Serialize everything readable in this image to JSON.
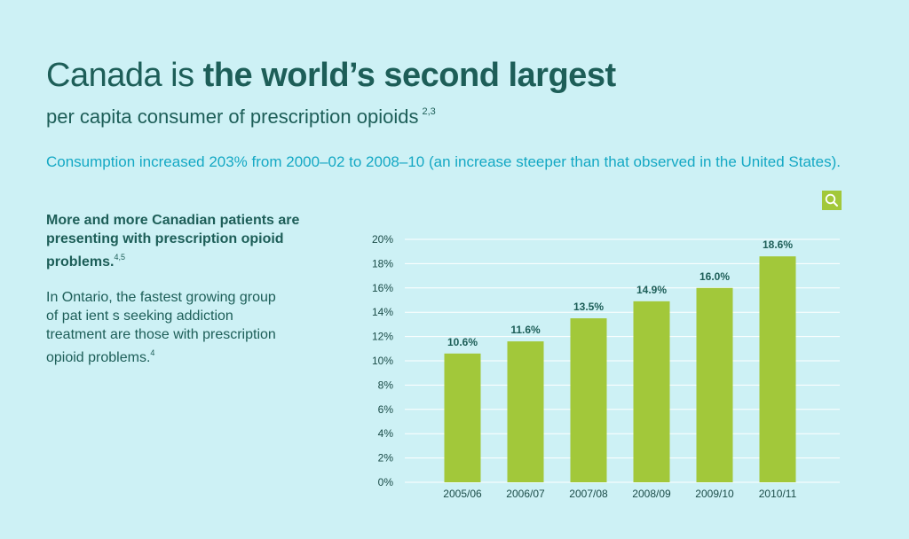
{
  "heading": {
    "title_regular": "Canada is ",
    "title_bold": "the world’s second largest",
    "subtitle": "per capita consumer of prescription opioids",
    "subtitle_refs": "2,3"
  },
  "stat_line": "Consumption increased 203% from 2000–02 to 2008–10 (an increase steeper than that observed in the United States).",
  "sidebar": {
    "lead": "More and more Canadian patients are presenting with prescription opioid problems.",
    "lead_refs": "4,5",
    "body": "In Ontario, the fastest growing group of pat ient s seeking addiction treatment are those with prescription opioid problems.",
    "body_refs": "4"
  },
  "zoom": {
    "icon": "magnifier-icon"
  },
  "colors": {
    "bar": "#a2c83a",
    "title": "#1d5e58",
    "accent": "#14a8c4",
    "grid": "#ffffff"
  },
  "chart_data": {
    "type": "bar",
    "categories": [
      "2005/06",
      "2006/07",
      "2007/08",
      "2008/09",
      "2009/10",
      "2010/11"
    ],
    "values": [
      10.6,
      11.6,
      13.5,
      14.9,
      16.0,
      18.6
    ],
    "data_labels": [
      "10.6%",
      "11.6%",
      "13.5%",
      "14.9%",
      "16.0%",
      "18.6%"
    ],
    "y_ticks": [
      "0%",
      "2%",
      "4%",
      "6%",
      "8%",
      "10%",
      "12%",
      "14%",
      "16%",
      "18%",
      "20%"
    ],
    "ylim": [
      0,
      20
    ],
    "grid": true,
    "title": "",
    "xlabel": "",
    "ylabel": ""
  }
}
